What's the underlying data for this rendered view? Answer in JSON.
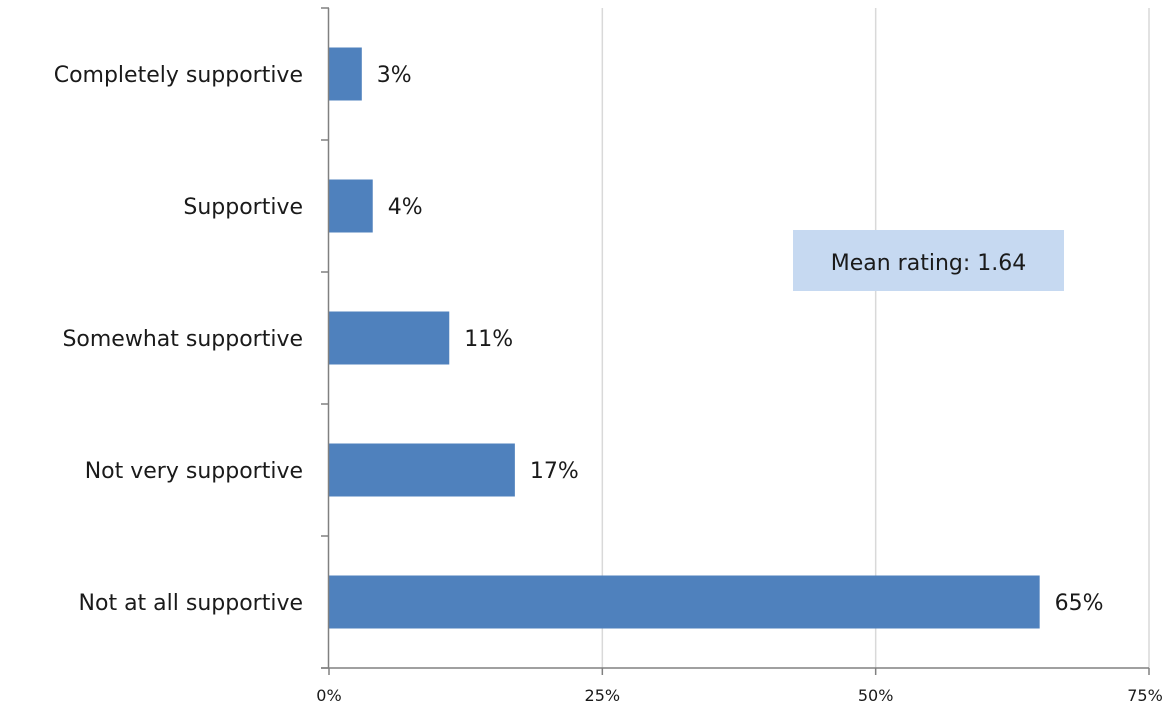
{
  "chart_data": {
    "type": "bar",
    "orientation": "horizontal",
    "categories": [
      "Completely supportive",
      "Supportive",
      "Somewhat supportive",
      "Not very supportive",
      "Not at all supportive"
    ],
    "values": [
      3,
      4,
      11,
      17,
      65
    ],
    "value_labels": [
      "3%",
      "4%",
      "11%",
      "17%",
      "65%"
    ],
    "x_ticks": [
      0,
      25,
      50,
      75
    ],
    "x_tick_labels": [
      "0%",
      "25%",
      "50%",
      "75%"
    ],
    "xlim": [
      0,
      75
    ],
    "title": "",
    "xlabel": "",
    "ylabel": "",
    "grid": "vertical",
    "legend": "none",
    "annotation": "Mean rating: 1.64",
    "colors": {
      "bar": "#4f81bd",
      "annotation_bg": "#c6d9f1",
      "grid": "#d9d9d9",
      "axis": "#808080"
    }
  }
}
